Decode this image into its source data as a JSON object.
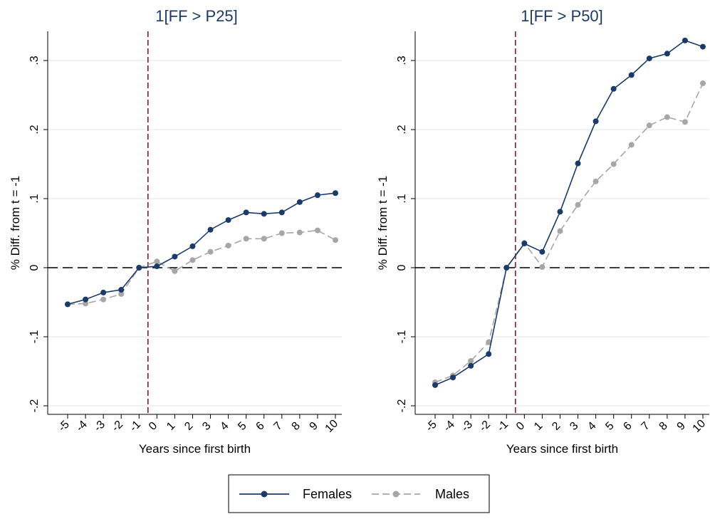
{
  "chart_data": [
    {
      "type": "line",
      "title": "1[FF > P25]",
      "xlabel": "Years since first birth",
      "ylabel": "% Diff. from t = -1",
      "ylim": [
        -0.2,
        0.33
      ],
      "yticks": [
        "-.2",
        "-.1",
        "0",
        ".1",
        ".2",
        ".3"
      ],
      "x": [
        -5,
        -4,
        -3,
        -2,
        -1,
        0,
        1,
        2,
        3,
        4,
        5,
        6,
        7,
        8,
        9,
        10
      ],
      "series": [
        {
          "name": "Females",
          "color": "#1a3a6b",
          "values": [
            -0.053,
            -0.046,
            -0.036,
            -0.032,
            0.0,
            0.002,
            0.016,
            0.031,
            0.055,
            0.069,
            0.08,
            0.078,
            0.08,
            0.095,
            0.105,
            0.108
          ]
        },
        {
          "name": "Males",
          "color": "#a6a6a6",
          "values": [
            -0.053,
            -0.052,
            -0.046,
            -0.038,
            0.0,
            0.009,
            -0.005,
            0.011,
            0.023,
            0.032,
            0.042,
            0.042,
            0.05,
            0.051,
            0.054,
            0.04
          ]
        }
      ],
      "event_line_x": -0.5,
      "zero_line": true,
      "grid": true
    },
    {
      "type": "line",
      "title": "1[FF > P50]",
      "xlabel": "Years since first birth",
      "ylabel": "% Diff. from t = -1",
      "ylim": [
        -0.2,
        0.33
      ],
      "yticks": [
        "-.2",
        "-.1",
        "0",
        ".1",
        ".2",
        ".3"
      ],
      "x": [
        -5,
        -4,
        -3,
        -2,
        -1,
        0,
        1,
        2,
        3,
        4,
        5,
        6,
        7,
        8,
        9,
        10
      ],
      "series": [
        {
          "name": "Females",
          "color": "#1a3a6b",
          "values": [
            -0.17,
            -0.159,
            -0.142,
            -0.125,
            0.0,
            0.035,
            0.023,
            0.081,
            0.151,
            0.212,
            0.259,
            0.279,
            0.303,
            0.31,
            0.329,
            0.32
          ]
        },
        {
          "name": "Males",
          "color": "#a6a6a6",
          "values": [
            -0.166,
            -0.156,
            -0.135,
            -0.108,
            0.0,
            0.036,
            0.001,
            0.053,
            0.091,
            0.125,
            0.15,
            0.178,
            0.206,
            0.218,
            0.211,
            0.267
          ]
        }
      ],
      "event_line_x": -0.5,
      "zero_line": true,
      "grid": true
    }
  ],
  "legend": {
    "items": [
      {
        "label": "Females",
        "color": "#1a3a6b",
        "dash": false
      },
      {
        "label": "Males",
        "color": "#a6a6a6",
        "dash": true
      }
    ]
  },
  "colors": {
    "females": "#1a3a6b",
    "males": "#a6a6a6",
    "event_line": "#8b1a2b",
    "grid": "#eaeaea"
  }
}
